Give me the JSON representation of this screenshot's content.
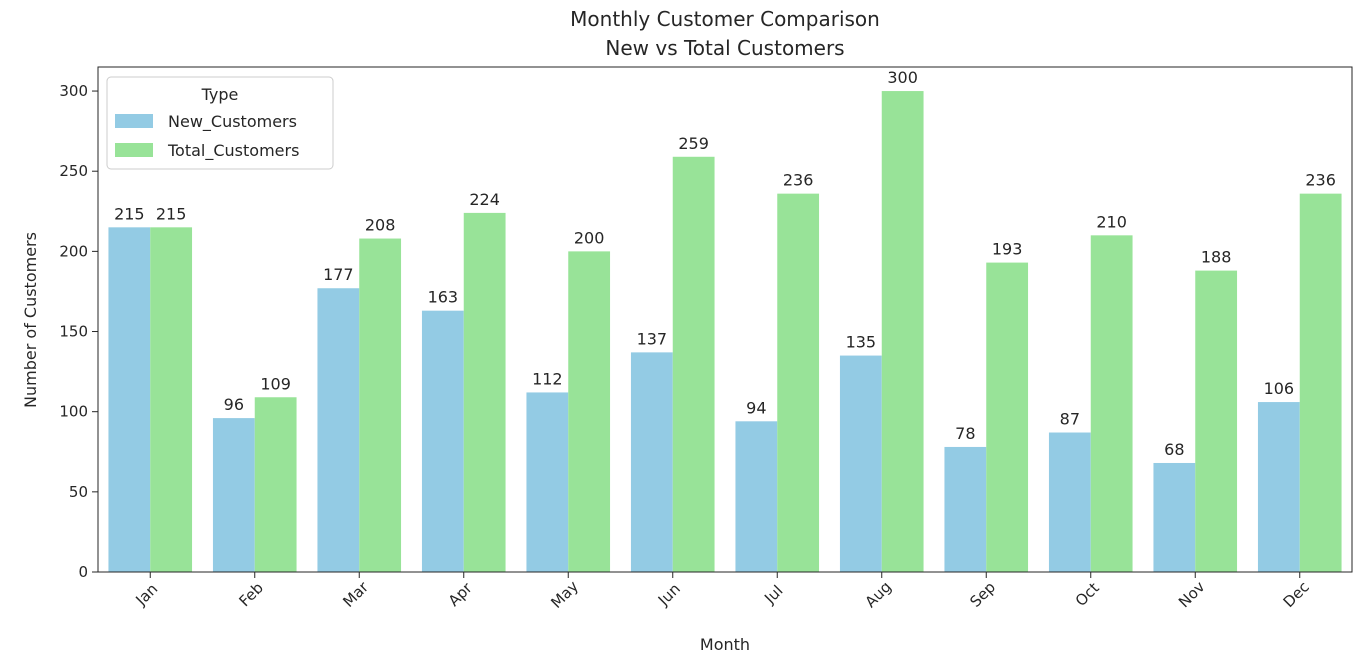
{
  "chart_data": {
    "type": "bar",
    "title": "Monthly Customer Comparison",
    "subtitle": "New vs Total Customers",
    "xlabel": "Month",
    "ylabel": "Number of Customers",
    "categories": [
      "Jan",
      "Feb",
      "Mar",
      "Apr",
      "May",
      "Jun",
      "Jul",
      "Aug",
      "Sep",
      "Oct",
      "Nov",
      "Dec"
    ],
    "series": [
      {
        "name": "New_Customers",
        "color": "#93cbe4",
        "values": [
          215,
          96,
          177,
          163,
          112,
          137,
          94,
          135,
          78,
          87,
          68,
          106
        ]
      },
      {
        "name": "Total_Customers",
        "color": "#98e398",
        "values": [
          215,
          109,
          208,
          224,
          200,
          259,
          236,
          300,
          193,
          210,
          188,
          236
        ]
      }
    ],
    "ylim": [
      0,
      315
    ],
    "yticks": [
      0,
      50,
      100,
      150,
      200,
      250,
      300
    ],
    "legend": {
      "title": "Type",
      "position": "top-left"
    },
    "grid": false
  }
}
